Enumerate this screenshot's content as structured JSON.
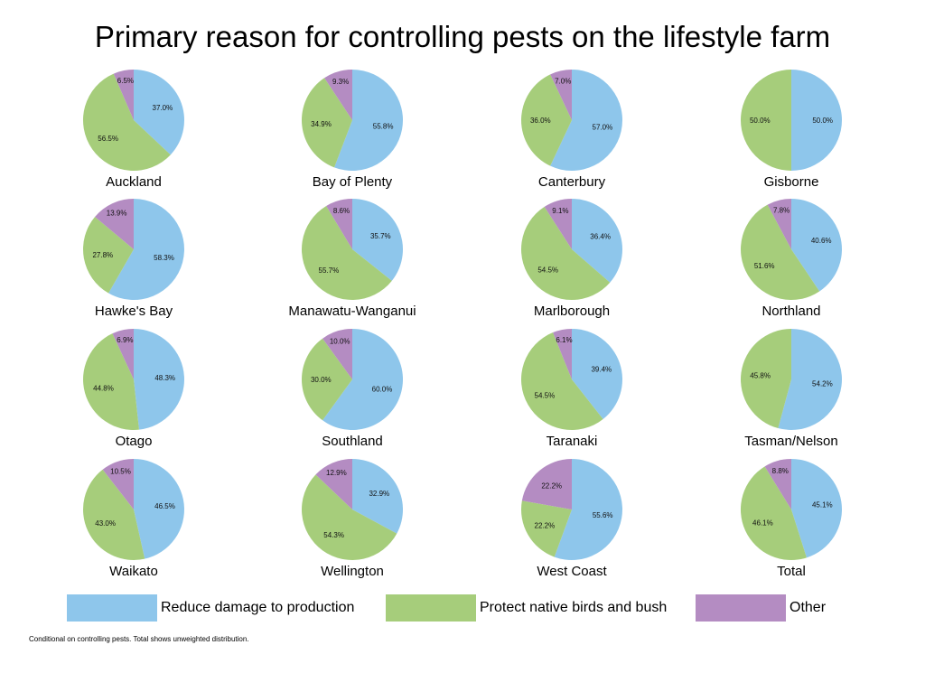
{
  "chart_data": {
    "type": "pie",
    "title": "Primary reason for controlling pests on the lifestyle farm",
    "series_names": [
      "Reduce damage to production",
      "Protect native birds and bush",
      "Other"
    ],
    "colors": [
      "#8ec6eb",
      "#a6cd7b",
      "#b48cc2"
    ],
    "pies": [
      {
        "name": "Auckland",
        "values": [
          37.0,
          56.5,
          6.5
        ],
        "labels": [
          "37.0%",
          "56.5%",
          "6.5%"
        ]
      },
      {
        "name": "Bay of Plenty",
        "values": [
          55.8,
          34.9,
          9.3
        ],
        "labels": [
          "55.8%",
          "34.9%",
          "9.3%"
        ]
      },
      {
        "name": "Canterbury",
        "values": [
          57.0,
          36.0,
          7.0
        ],
        "labels": [
          "57.0%",
          "36.0%",
          "7.0%"
        ]
      },
      {
        "name": "Gisborne",
        "values": [
          50.0,
          50.0,
          0.0
        ],
        "labels": [
          "50.0%",
          "50.0%",
          ""
        ]
      },
      {
        "name": "Hawke's Bay",
        "values": [
          58.3,
          27.8,
          13.9
        ],
        "labels": [
          "58.3%",
          "27.8%",
          "13.9%"
        ]
      },
      {
        "name": "Manawatu-Wanganui",
        "values": [
          35.7,
          55.7,
          8.6
        ],
        "labels": [
          "35.7%",
          "55.7%",
          "8.6%"
        ]
      },
      {
        "name": "Marlborough",
        "values": [
          36.4,
          54.5,
          9.1
        ],
        "labels": [
          "36.4%",
          "54.5%",
          "9.1%"
        ]
      },
      {
        "name": "Northland",
        "values": [
          40.6,
          51.6,
          7.8
        ],
        "labels": [
          "40.6%",
          "51.6%",
          "7.8%"
        ]
      },
      {
        "name": "Otago",
        "values": [
          48.3,
          44.8,
          6.9
        ],
        "labels": [
          "48.3%",
          "44.8%",
          "6.9%"
        ]
      },
      {
        "name": "Southland",
        "values": [
          60.0,
          30.0,
          10.0
        ],
        "labels": [
          "60.0%",
          "30.0%",
          "10.0%"
        ]
      },
      {
        "name": "Taranaki",
        "values": [
          39.4,
          54.5,
          6.1
        ],
        "labels": [
          "39.4%",
          "54.5%",
          "6.1%"
        ]
      },
      {
        "name": "Tasman/Nelson",
        "values": [
          54.2,
          45.8,
          0.0
        ],
        "labels": [
          "54.2%",
          "45.8%",
          ""
        ]
      },
      {
        "name": "Waikato",
        "values": [
          46.5,
          43.0,
          10.5
        ],
        "labels": [
          "46.5%",
          "43.0%",
          "10.5%"
        ]
      },
      {
        "name": "Wellington",
        "values": [
          32.9,
          54.3,
          12.9
        ],
        "labels": [
          "32.9%",
          "54.3%",
          "12.9%"
        ]
      },
      {
        "name": "West Coast",
        "values": [
          55.6,
          22.2,
          22.2
        ],
        "labels": [
          "55.6%",
          "22.2%",
          "22.2%"
        ]
      },
      {
        "name": "Total",
        "values": [
          45.1,
          46.1,
          8.8
        ],
        "labels": [
          "45.1%",
          "46.1%",
          "8.8%"
        ]
      }
    ],
    "legend_position": "bottom",
    "footnote": "Conditional on controlling pests. Total shows unweighted distribution."
  }
}
